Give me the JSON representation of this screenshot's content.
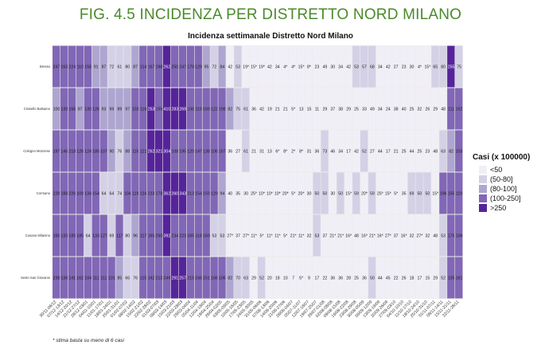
{
  "figure_title": "FIG. 4.5 INCIDENZA PER DISTRETTO NORD MILANO",
  "footnote": "* stima basta su meno di 6 casi",
  "chart_data": {
    "type": "heatmap",
    "title": "Incidenza settimanale Distretto Nord Milano",
    "xlabel": "",
    "ylabel": "",
    "grid": true,
    "rows": [
      "Bresso",
      "Cinisello Balsamo",
      "Cologno Monzese",
      "Cormano",
      "Cusano Milanino",
      "Sesto San Giovanni"
    ],
    "dates": [
      "30/11-06/12",
      "07/12-13/12",
      "14/12-20/12",
      "21/12-27/12",
      "28/12-03/01",
      "04/01-10/01",
      "11/01-17/01",
      "18/01-24/01",
      "25/01-31/01",
      "01/02-07/02",
      "08/02-14/02",
      "15/02-21/02",
      "22/02-28/02",
      "01/03-07/03",
      "08/03-14/03",
      "15/03-21/03",
      "22/03-28/03",
      "29/03-04/04",
      "05/04-11/04",
      "12/04-18/04",
      "19/04-25/04",
      "26/04-02/05",
      "03/05-09/05",
      "10/05-16/05",
      "17/05-23/05",
      "24/05-30/05",
      "31/05-06/06",
      "07/06-13/06",
      "14/06-20/06",
      "21/06-27/06",
      "28/06-04/07",
      "05/07-11/07",
      "12/07-18/07",
      "19/07-25/07",
      "26/07-01/08",
      "02/08-08/08",
      "09/08-15/08",
      "16/08-22/08",
      "23/08-29/08",
      "30/08-05/09",
      "06/09-12/09",
      "13/09-19/09",
      "20/09-26/09",
      "27/09-03/10",
      "04/10-10/10",
      "11/10-17/10",
      "18/10-24/10",
      "25/10-31/10",
      "01/11-07/11",
      "08/11-14/11",
      "15/11-21/11",
      "22/11-28/11"
    ],
    "x_tick_labels": [
      "30/11-06/12",
      "07/12-13/12",
      "14/12-20/12",
      "21/12-27/12",
      "28/12-03/01",
      "04/01-10/01",
      "11/01-17/01",
      "18/01-24/01",
      "25/01-31/01",
      "01/02-07/02",
      "08/02-14/02",
      "15/02-21/02",
      "22/02-28/02",
      "01/03-07/03",
      "08/03-14/03",
      "15/03-21/03",
      "22/03-28/03",
      "29/03-04/04",
      "05/04-11/04",
      "12/04-18/04",
      "19/04-25/04",
      "26/04-02/05",
      "03/05-09/05",
      "10/05-16/05",
      "17/05-23/05",
      "24/05-30/05",
      "31/05-06/06",
      "07/06-13/06",
      "14/06-20/06",
      "21/06-27/06",
      "28/06-04/07",
      "05/07-11/07",
      "12/07-18/07",
      "19/07-25/07",
      "26/07-01/08",
      "02/08-08/08",
      "09/08-15/08",
      "16/08-22/08",
      "23/08-29/08",
      "30/08-05/09",
      "06/09-12/09",
      "13/09-19/09",
      "20/09-26/09",
      "27/09-03/10",
      "04/10-10/10",
      "11/10-17/10",
      "18/10-24/10",
      "25/10-31/10",
      "01/11-07/11",
      "08/11-14/11",
      "15/11-21/11",
      "22/11-28/11"
    ],
    "cells": [
      [
        "247",
        "163",
        "224",
        "110",
        "158",
        "91",
        "87",
        "72",
        "61",
        "80",
        "87",
        "114",
        "167",
        "198",
        "262",
        "250",
        "247",
        "179",
        "129",
        "95",
        "72",
        "84",
        "42",
        "53",
        "19*",
        "15*",
        "19*",
        "42",
        "34",
        "4*",
        "4*",
        "15*",
        "8*",
        "23",
        "49",
        "30",
        "34",
        "42",
        "53",
        "57",
        "68",
        "34",
        "42",
        "27",
        "23",
        "30",
        "4*",
        "15*",
        "65",
        "80",
        "255",
        "75"
      ],
      [
        "100",
        "130",
        "156",
        "87",
        "130",
        "126",
        "93",
        "99",
        "89",
        "97",
        "103",
        "116",
        "253",
        "155",
        "410",
        "283",
        "269",
        "106",
        "119",
        "169",
        "122",
        "198",
        "82",
        "75",
        "61",
        "36",
        "42",
        "19",
        "21",
        "21",
        "5*",
        "13",
        "15",
        "11",
        "29",
        "37",
        "38",
        "29",
        "25",
        "33",
        "49",
        "34",
        "24",
        "38",
        "40",
        "25",
        "32",
        "26",
        "29",
        "48",
        "111",
        "152"
      ],
      [
        "197",
        "145",
        "218",
        "126",
        "124",
        "185",
        "107",
        "90",
        "76",
        "88",
        "115",
        "121",
        "262",
        "321",
        "304",
        "108",
        "195",
        "120",
        "147",
        "138",
        "106",
        "167",
        "36",
        "27",
        "61",
        "21",
        "31",
        "13",
        "6*",
        "8*",
        "2*",
        "8*",
        "31",
        "36",
        "73",
        "46",
        "34",
        "17",
        "42",
        "52",
        "27",
        "44",
        "17",
        "21",
        "25",
        "44",
        "25",
        "23",
        "48",
        "63",
        "82",
        "103"
      ],
      [
        "228",
        "188",
        "226",
        "109",
        "134",
        "154",
        "64",
        "64",
        "74",
        "104",
        "119",
        "124",
        "233",
        "178",
        "362",
        "260",
        "343",
        "213",
        "154",
        "159",
        "129",
        "94",
        "40",
        "35",
        "30",
        "25*",
        "10*",
        "10*",
        "10*",
        "20*",
        "5*",
        "20*",
        "30",
        "50",
        "50",
        "30",
        "50",
        "15*",
        "59",
        "20*",
        "59",
        "25*",
        "15*",
        "5*",
        "35",
        "69",
        "50",
        "50",
        "15*",
        "196",
        "155",
        "119"
      ],
      [
        "165",
        "133",
        "185",
        "185",
        "64",
        "133",
        "127",
        "69",
        "117",
        "80",
        "96",
        "117",
        "165",
        "250",
        "392",
        "234",
        "223",
        "165",
        "118",
        "169",
        "53",
        "53",
        "27*",
        "37",
        "27*",
        "11*",
        "5*",
        "11*",
        "11*",
        "5*",
        "21*",
        "11*",
        "32",
        "53",
        "37",
        "21*",
        "21*",
        "16*",
        "48",
        "16*",
        "21*",
        "16*",
        "27*",
        "37",
        "16*",
        "32",
        "27*",
        "32",
        "48",
        "53",
        "175",
        "106"
      ],
      [
        "238",
        "136",
        "141",
        "162",
        "104",
        "111",
        "111",
        "101",
        "85",
        "66",
        "76",
        "115",
        "142",
        "213",
        "249",
        "291",
        "257",
        "215",
        "166",
        "151",
        "166",
        "106",
        "82",
        "70",
        "63",
        "29",
        "52",
        "20",
        "18",
        "10",
        "7",
        "5*",
        "9",
        "17",
        "22",
        "36",
        "36",
        "28",
        "25",
        "36",
        "50",
        "44",
        "45",
        "22",
        "26",
        "18",
        "17",
        "15",
        "29",
        "52",
        "135",
        "161"
      ]
    ],
    "color_scale": {
      "title": "Casi (x 100000)",
      "bins": [
        "<50",
        "(50-80]",
        "(80-100]",
        "(100-250]",
        ">250"
      ],
      "colors": [
        "#f1eff6",
        "#d4d1e6",
        "#aea6d0",
        "#8167b6",
        "#56249a"
      ]
    }
  }
}
